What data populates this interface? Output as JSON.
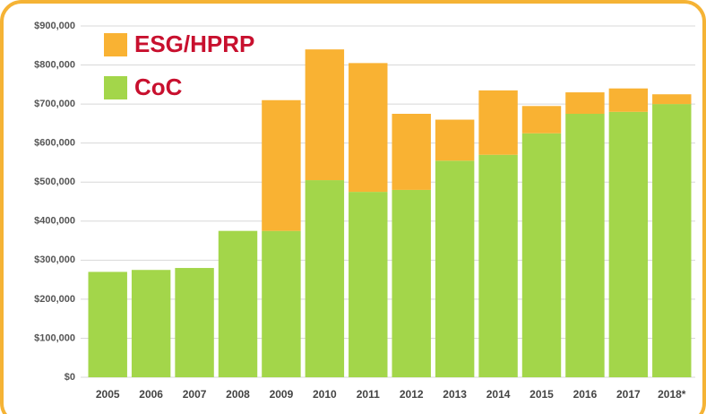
{
  "chart_data": {
    "type": "stacked_bar",
    "categories": [
      "2005",
      "2006",
      "2007",
      "2008",
      "2009",
      "2010",
      "2011",
      "2012",
      "2013",
      "2014",
      "2015",
      "2016",
      "2017",
      "2018*"
    ],
    "series": [
      {
        "name": "CoC",
        "color": "#a3d64a",
        "values": [
          270000,
          275000,
          280000,
          375000,
          375000,
          505000,
          475000,
          480000,
          555000,
          570000,
          625000,
          675000,
          680000,
          700000
        ]
      },
      {
        "name": "ESG/HPRP",
        "color": "#f9b233",
        "values": [
          null,
          null,
          null,
          null,
          335000,
          335000,
          330000,
          195000,
          105000,
          165000,
          70000,
          55000,
          60000,
          25000
        ]
      }
    ],
    "ylim": [
      0,
      900000
    ],
    "yticks": [
      {
        "value": 0,
        "label": "$0"
      },
      {
        "value": 100000,
        "label": "$100,000"
      },
      {
        "value": 200000,
        "label": "$200,000"
      },
      {
        "value": 300000,
        "label": "$300,000"
      },
      {
        "value": 400000,
        "label": "$400,000"
      },
      {
        "value": 500000,
        "label": "$500,000"
      },
      {
        "value": 600000,
        "label": "$600,000"
      },
      {
        "value": 700000,
        "label": "$700,000"
      },
      {
        "value": 800000,
        "label": "$800,000"
      },
      {
        "value": 900000,
        "label": "$900,000"
      }
    ],
    "grid": true,
    "legend": "upper left"
  }
}
